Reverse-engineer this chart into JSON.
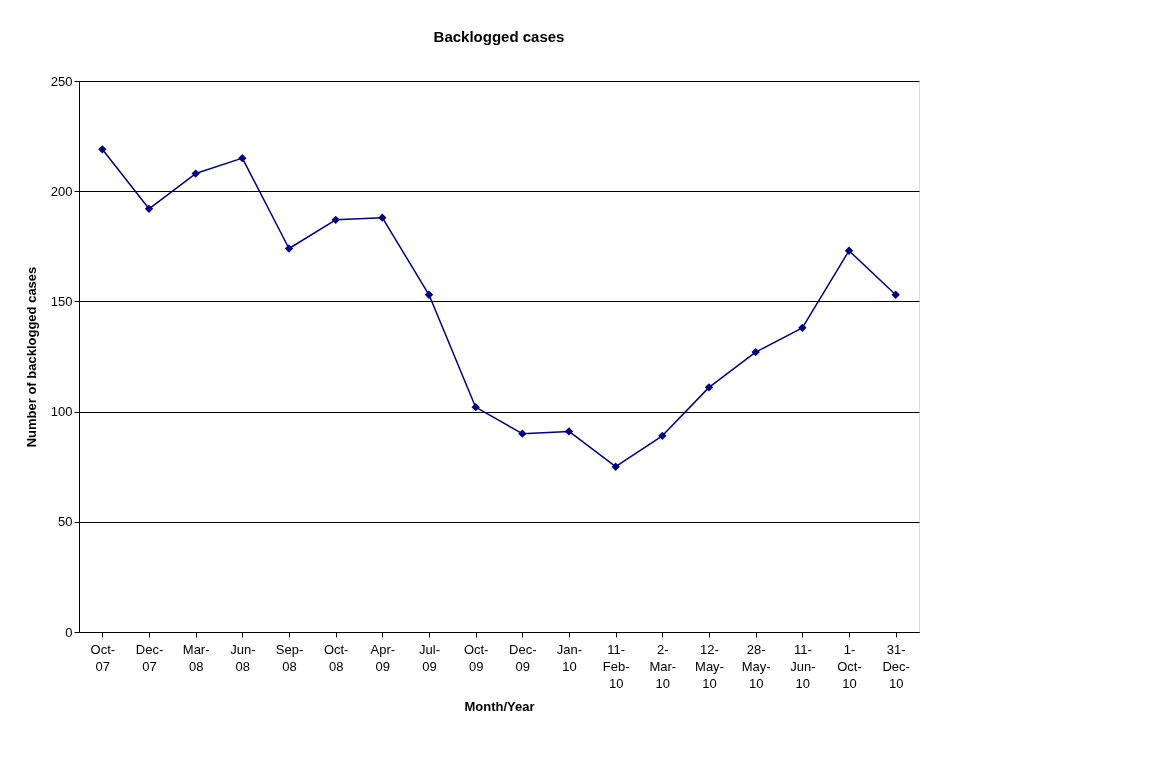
{
  "chart_data": {
    "type": "line",
    "title": "Backlogged cases",
    "xlabel": "Month/Year",
    "ylabel": "Number of backlogged cases",
    "categories": [
      "Oct-07",
      "Dec-07",
      "Mar-08",
      "Jun-08",
      "Sep-08",
      "Oct-08",
      "Apr-09",
      "Jul-09",
      "Oct-09",
      "Dec-09",
      "Jan-10",
      "11-Feb-10",
      "2-Mar-10",
      "12-May-10",
      "28-May-10",
      "11-Jun-10",
      "1-Oct-10",
      "31-Dec-10"
    ],
    "series": [
      {
        "color": "#000080",
        "values": [
          219,
          192,
          208,
          215,
          174,
          187,
          188,
          153,
          102,
          90,
          91,
          75,
          89,
          111,
          127,
          138,
          173,
          153
        ]
      }
    ],
    "ylim": [
      0,
      250
    ],
    "yticks": [
      0,
      50,
      100,
      150,
      200,
      250
    ],
    "grid": "y",
    "marker": "diamond",
    "line_style": "solid"
  }
}
